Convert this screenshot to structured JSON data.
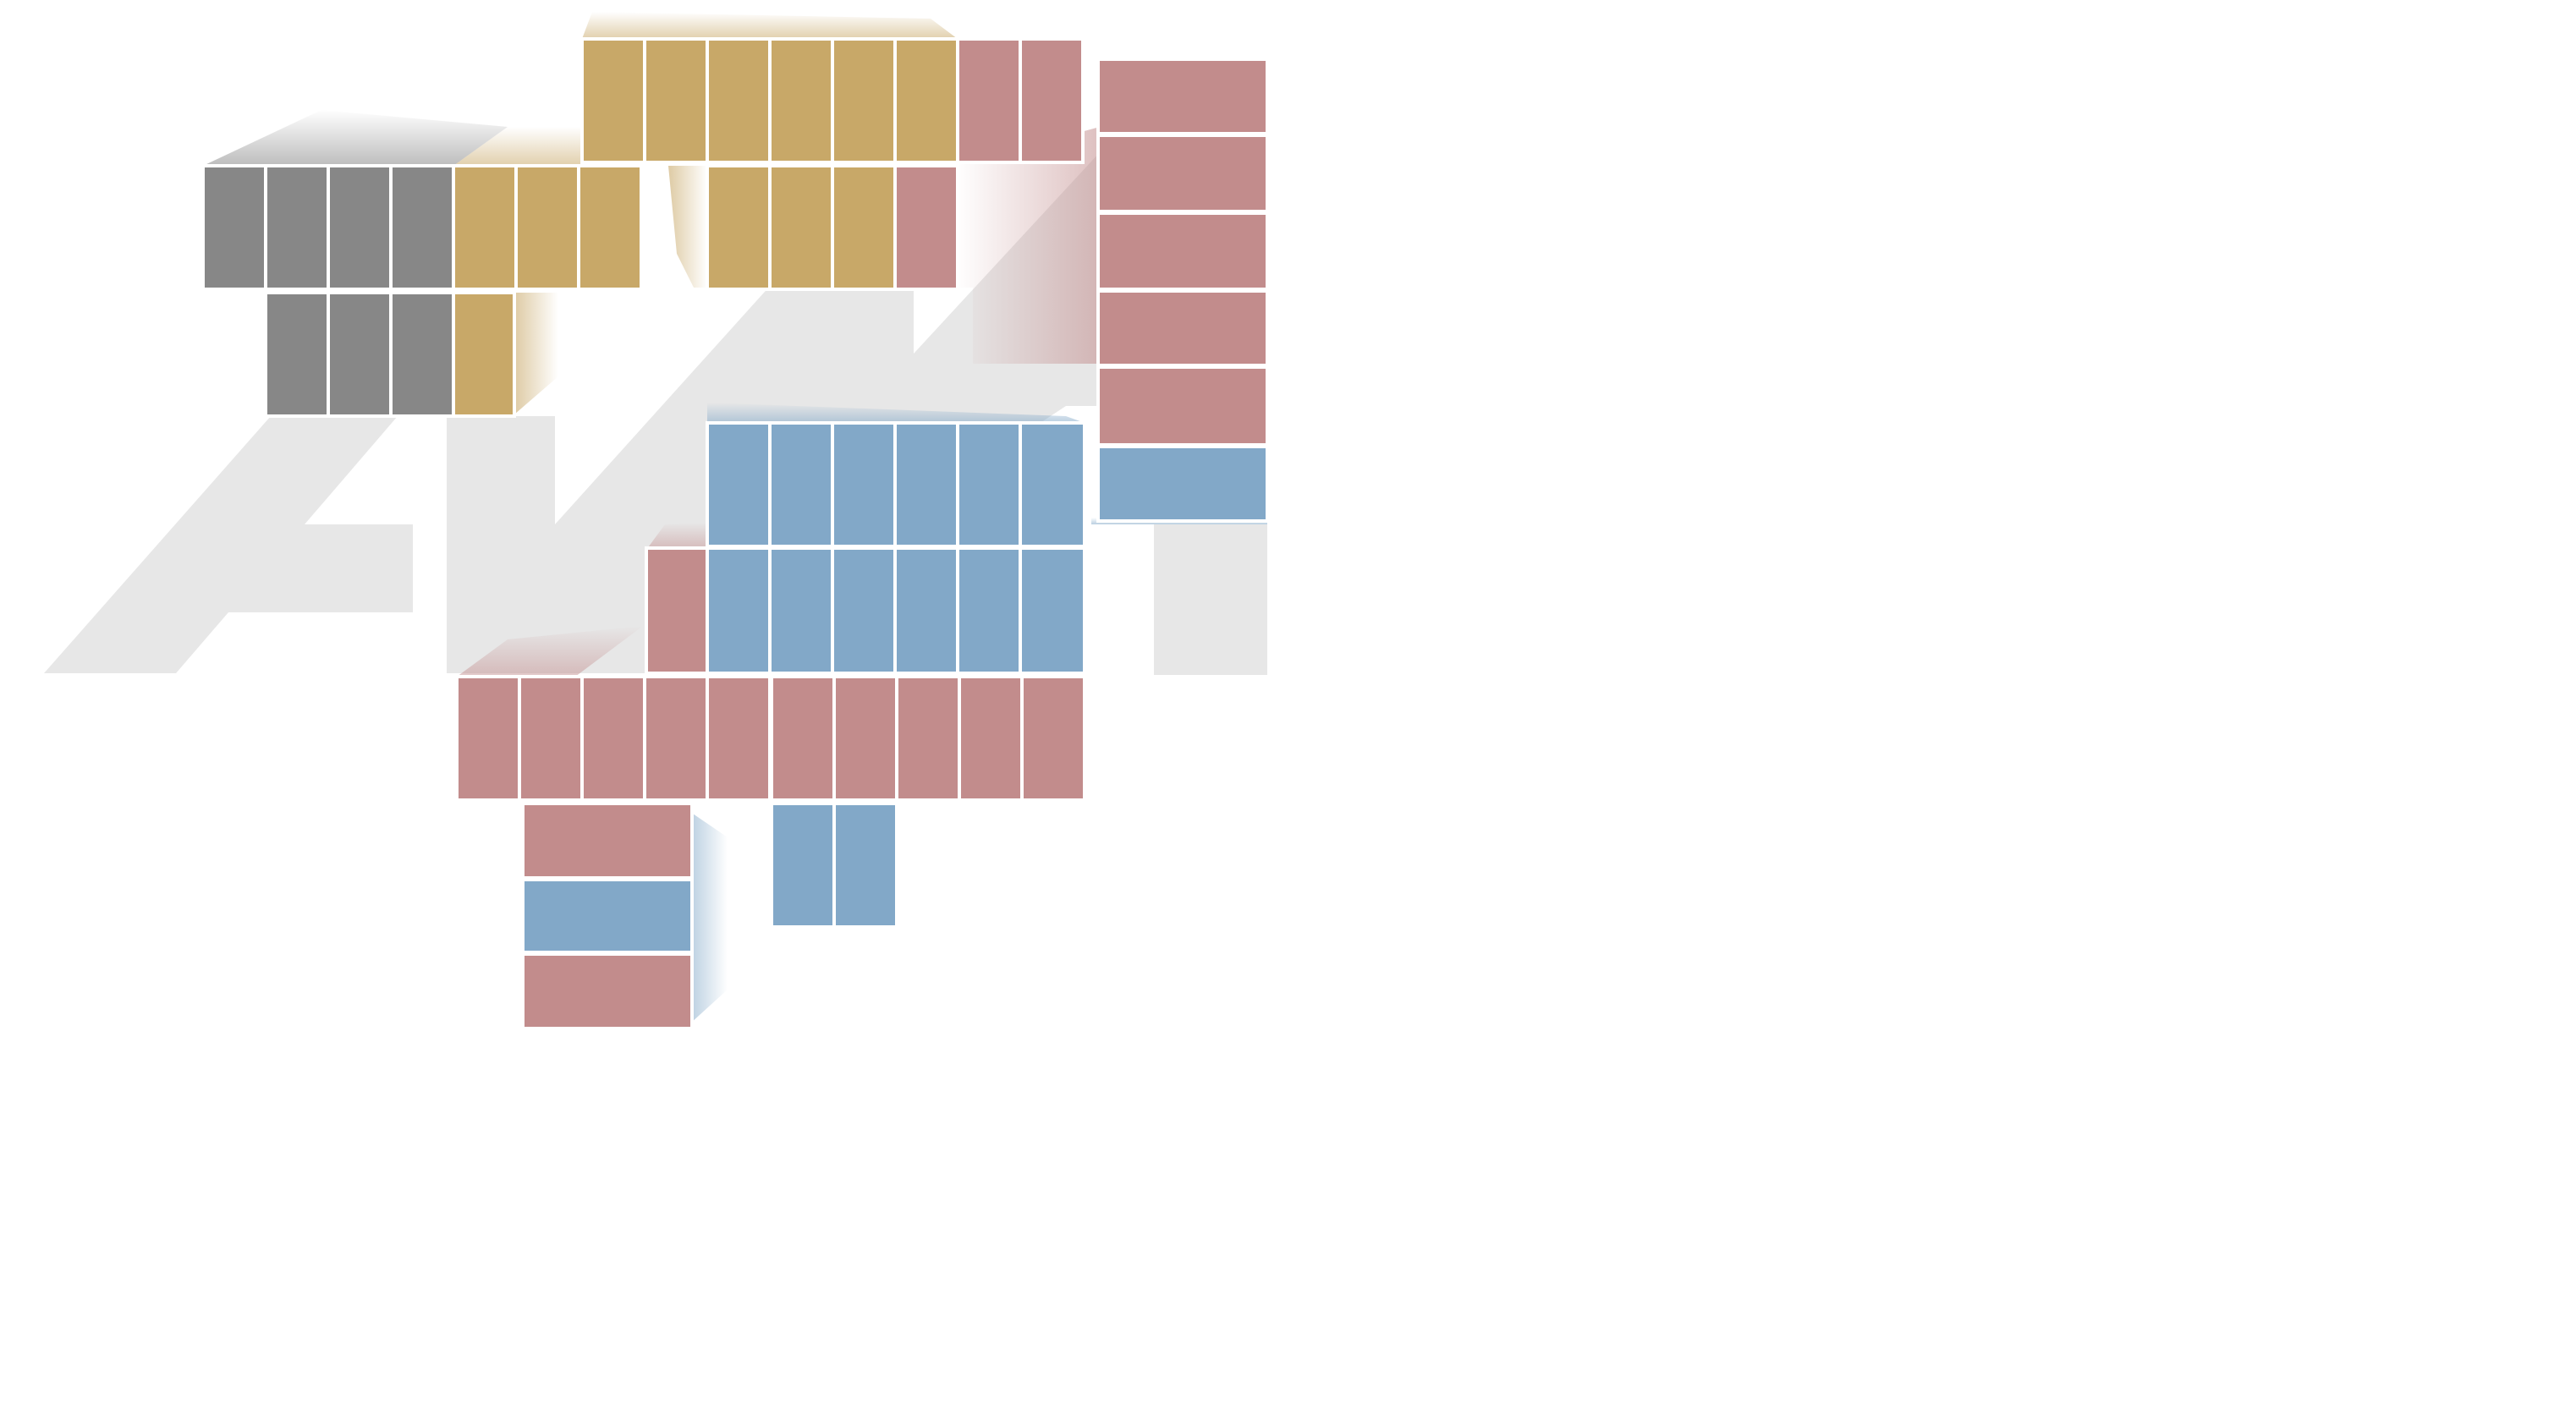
{
  "scene": {
    "background_color": "#ffffff",
    "watermark_color": "#e7e7e7",
    "tile_gap_color": "#ffffff",
    "palette": {
      "gray": "#878787",
      "gold": "#c8a868",
      "rose": "#c28c8c",
      "blue": "#82a8c8"
    }
  }
}
